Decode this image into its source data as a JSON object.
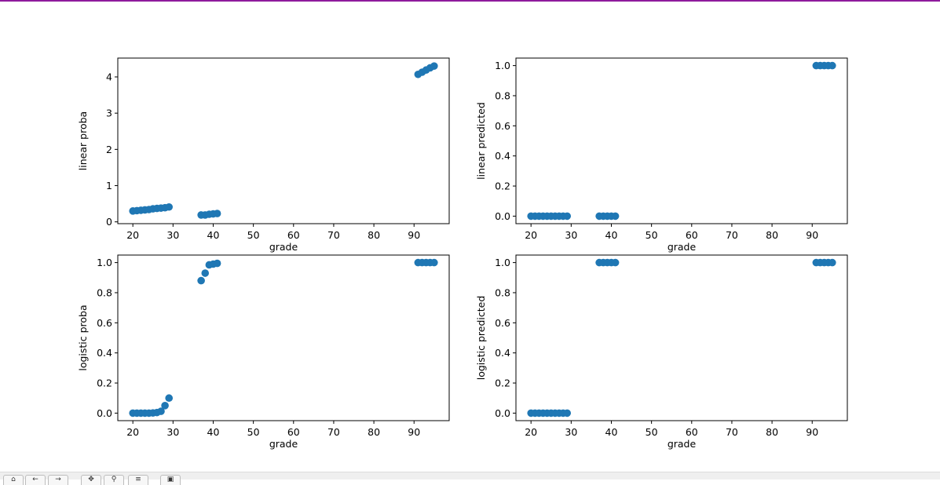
{
  "window": {
    "accent_color": "#8e1a9c"
  },
  "toolbar": {
    "buttons": [
      {
        "name": "home-button",
        "icon": "home-icon",
        "glyph": "⌂"
      },
      {
        "name": "back-button",
        "icon": "arrow-left-icon",
        "glyph": "←"
      },
      {
        "name": "forward-button",
        "icon": "arrow-right-icon",
        "glyph": "→"
      },
      {
        "name": "pan-button",
        "icon": "move-icon",
        "glyph": "✥"
      },
      {
        "name": "zoom-button",
        "icon": "magnifier-icon",
        "glyph": "⚲"
      },
      {
        "name": "configure-subplots-button",
        "icon": "sliders-icon",
        "glyph": "≡"
      },
      {
        "name": "save-button",
        "icon": "floppy-disk-icon",
        "glyph": "▣"
      }
    ]
  },
  "chart_data": [
    {
      "type": "scatter",
      "xlabel": "grade",
      "ylabel": "linear proba",
      "xlim": [
        16.25,
        98.75
      ],
      "ylim": [
        -0.05,
        4.52
      ],
      "xticks": [
        20,
        30,
        40,
        50,
        60,
        70,
        80,
        90
      ],
      "yticks": [
        0,
        1,
        2,
        3,
        4
      ],
      "ytick_labels": [
        "0",
        "1",
        "2",
        "3",
        "4"
      ],
      "color": "#1f77b4",
      "x": [
        20,
        21,
        22,
        23,
        24,
        25,
        26,
        27,
        28,
        29,
        37,
        38,
        39,
        40,
        41,
        91,
        92,
        93,
        94,
        95
      ],
      "y": [
        0.3,
        0.31,
        0.32,
        0.33,
        0.34,
        0.36,
        0.37,
        0.38,
        0.39,
        0.41,
        0.19,
        0.19,
        0.21,
        0.22,
        0.23,
        4.07,
        4.13,
        4.19,
        4.25,
        4.3
      ]
    },
    {
      "type": "scatter",
      "xlabel": "grade",
      "ylabel": "linear predicted",
      "xlim": [
        16.25,
        98.75
      ],
      "ylim": [
        -0.05,
        1.05
      ],
      "xticks": [
        20,
        30,
        40,
        50,
        60,
        70,
        80,
        90
      ],
      "yticks": [
        0,
        0.2,
        0.4,
        0.6,
        0.8,
        1.0
      ],
      "ytick_labels": [
        "0.0",
        "0.2",
        "0.4",
        "0.6",
        "0.8",
        "1.0"
      ],
      "color": "#1f77b4",
      "x": [
        20,
        21,
        22,
        23,
        24,
        25,
        26,
        27,
        28,
        29,
        37,
        38,
        39,
        40,
        41,
        91,
        92,
        93,
        94,
        95
      ],
      "y": [
        0,
        0,
        0,
        0,
        0,
        0,
        0,
        0,
        0,
        0,
        0,
        0,
        0,
        0,
        0,
        1,
        1,
        1,
        1,
        1
      ]
    },
    {
      "type": "scatter",
      "xlabel": "grade",
      "ylabel": "logistic proba",
      "xlim": [
        16.25,
        98.75
      ],
      "ylim": [
        -0.05,
        1.05
      ],
      "xticks": [
        20,
        30,
        40,
        50,
        60,
        70,
        80,
        90
      ],
      "yticks": [
        0,
        0.2,
        0.4,
        0.6,
        0.8,
        1.0
      ],
      "ytick_labels": [
        "0.0",
        "0.2",
        "0.4",
        "0.6",
        "0.8",
        "1.0"
      ],
      "color": "#1f77b4",
      "x": [
        20,
        21,
        22,
        23,
        24,
        25,
        26,
        27,
        28,
        29,
        37,
        38,
        39,
        40,
        41,
        91,
        92,
        93,
        94,
        95
      ],
      "y": [
        0.0,
        0.0,
        0.0,
        0.0,
        0.0,
        0.001,
        0.004,
        0.012,
        0.05,
        0.1,
        0.88,
        0.93,
        0.985,
        0.99,
        0.995,
        1,
        1,
        1,
        1,
        1
      ]
    },
    {
      "type": "scatter",
      "xlabel": "grade",
      "ylabel": "logistic predicted",
      "xlim": [
        16.25,
        98.75
      ],
      "ylim": [
        -0.05,
        1.05
      ],
      "xticks": [
        20,
        30,
        40,
        50,
        60,
        70,
        80,
        90
      ],
      "yticks": [
        0,
        0.2,
        0.4,
        0.6,
        0.8,
        1.0
      ],
      "ytick_labels": [
        "0.0",
        "0.2",
        "0.4",
        "0.6",
        "0.8",
        "1.0"
      ],
      "color": "#1f77b4",
      "x": [
        20,
        21,
        22,
        23,
        24,
        25,
        26,
        27,
        28,
        29,
        37,
        38,
        39,
        40,
        41,
        91,
        92,
        93,
        94,
        95
      ],
      "y": [
        0,
        0,
        0,
        0,
        0,
        0,
        0,
        0,
        0,
        0,
        1,
        1,
        1,
        1,
        1,
        1,
        1,
        1,
        1,
        1
      ]
    }
  ]
}
